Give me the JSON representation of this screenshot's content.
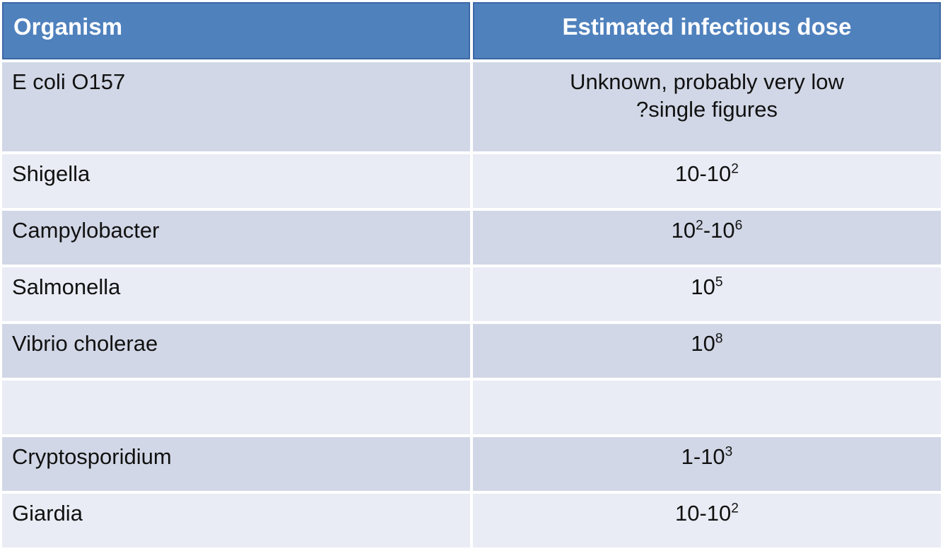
{
  "colors": {
    "header_bg": "#4f81bd",
    "header_border": "#3c69a5",
    "header_text": "#ffffff",
    "row_band_dark": "#d1d7e6",
    "row_band_light": "#e9ecf4",
    "body_text": "#111111",
    "divider": "#ffffff"
  },
  "table": {
    "columns": [
      {
        "label": "Organism"
      },
      {
        "label": "Estimated infectious dose"
      }
    ],
    "rows": [
      {
        "organism": "E coli O157",
        "dose": [
          {
            "text": "Unknown, probably very low"
          },
          {
            "break": true
          },
          {
            "text": "?single figures"
          }
        ]
      },
      {
        "organism": "Shigella",
        "dose": [
          {
            "text": "10-10"
          },
          {
            "text": "2",
            "sup": true
          }
        ]
      },
      {
        "organism": "Campylobacter",
        "dose": [
          {
            "text": "10"
          },
          {
            "text": "2",
            "sup": true
          },
          {
            "text": "-10"
          },
          {
            "text": "6",
            "sup": true
          }
        ]
      },
      {
        "organism": "Salmonella",
        "dose": [
          {
            "text": "10"
          },
          {
            "text": "5",
            "sup": true
          }
        ]
      },
      {
        "organism": "Vibrio cholerae",
        "dose": [
          {
            "text": "10"
          },
          {
            "text": "8",
            "sup": true
          }
        ]
      },
      {
        "organism": "",
        "dose": []
      },
      {
        "organism": "Cryptosporidium",
        "dose": [
          {
            "text": "1-10"
          },
          {
            "text": "3",
            "sup": true
          }
        ]
      },
      {
        "organism": "Giardia",
        "dose": [
          {
            "text": "10-10"
          },
          {
            "text": "2",
            "sup": true
          }
        ]
      }
    ]
  },
  "chart_data": {
    "type": "table",
    "columns": [
      "Organism",
      "Estimated infectious dose"
    ],
    "rows": [
      [
        "E coli O157",
        "Unknown, probably very low ?single figures"
      ],
      [
        "Shigella",
        "10-10^2"
      ],
      [
        "Campylobacter",
        "10^2-10^6"
      ],
      [
        "Salmonella",
        "10^5"
      ],
      [
        "Vibrio cholerae",
        "10^8"
      ],
      [
        "",
        ""
      ],
      [
        "Cryptosporidium",
        "1-10^3"
      ],
      [
        "Giardia",
        "10-10^2"
      ]
    ]
  }
}
